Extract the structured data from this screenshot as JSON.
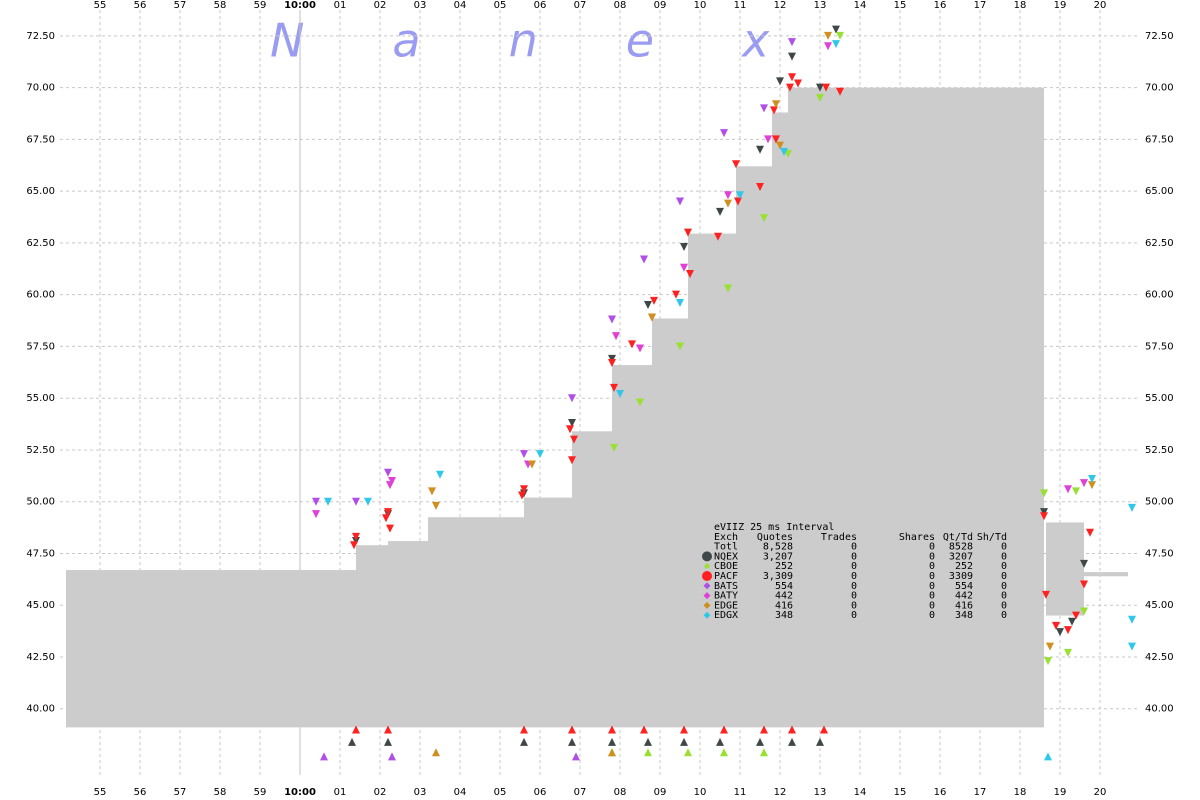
{
  "chart_data": {
    "type": "quote-scatter",
    "watermark": "Nanex",
    "xlim": [
      54,
      81
    ],
    "xticks": [
      55,
      56,
      57,
      58,
      59,
      {
        "value": 60,
        "label": "10:00"
      },
      {
        "value": 61,
        "label": "01"
      },
      {
        "value": 62,
        "label": "02"
      },
      {
        "value": 63,
        "label": "03"
      },
      {
        "value": 64,
        "label": "04"
      },
      {
        "value": 65,
        "label": "05"
      },
      {
        "value": 66,
        "label": "06"
      },
      {
        "value": 67,
        "label": "07"
      },
      {
        "value": 68,
        "label": "08"
      },
      {
        "value": 69,
        "label": "09"
      },
      {
        "value": 70,
        "label": "10"
      },
      {
        "value": 71,
        "label": "11"
      },
      {
        "value": 72,
        "label": "12"
      },
      {
        "value": 73,
        "label": "13"
      },
      {
        "value": 74,
        "label": "14"
      },
      {
        "value": 75,
        "label": "15"
      },
      {
        "value": 76,
        "label": "16"
      },
      {
        "value": 77,
        "label": "17"
      },
      {
        "value": 78,
        "label": "18"
      },
      {
        "value": 79,
        "label": "19"
      },
      {
        "value": 80,
        "label": "20"
      }
    ],
    "ylim": [
      36.8,
      73.75
    ],
    "yticks": [
      {
        "value": 40,
        "label": "40.00"
      },
      {
        "value": 42.5,
        "label": "42.50"
      },
      {
        "value": 45,
        "label": "45.00"
      },
      {
        "value": 47.5,
        "label": "47.50"
      },
      {
        "value": 50,
        "label": "50.00"
      },
      {
        "value": 52.5,
        "label": "52.50"
      },
      {
        "value": 55,
        "label": "55.00"
      },
      {
        "value": 57.5,
        "label": "57.50"
      },
      {
        "value": 60,
        "label": "60.00"
      },
      {
        "value": 62.5,
        "label": "62.50"
      },
      {
        "value": 65,
        "label": "65.00"
      },
      {
        "value": 67.5,
        "label": "67.50"
      },
      {
        "value": 70,
        "label": "70.00"
      },
      {
        "value": 72.5,
        "label": "72.50"
      }
    ],
    "grid": true,
    "range": {
      "color": "#cccccc",
      "x": [
        54.15,
        61.4,
        62.2,
        63.2,
        65.6,
        66.8,
        67.8,
        68.8,
        69.7,
        70.9,
        71.8,
        72.2,
        78.65,
        79.6
      ],
      "x_end": [
        61.4,
        62.2,
        63.2,
        65.6,
        66.8,
        67.8,
        68.8,
        69.7,
        70.9,
        71.8,
        72.2,
        78.6,
        79.6,
        80.7
      ],
      "high": [
        46.7,
        47.9,
        48.1,
        49.25,
        50.2,
        53.4,
        56.6,
        58.85,
        62.95,
        66.2,
        68.8,
        70.0,
        49.0,
        46.6
      ],
      "low": [
        39.1,
        39.1,
        39.1,
        39.1,
        39.1,
        39.1,
        39.1,
        39.1,
        39.1,
        39.1,
        39.1,
        39.1,
        44.5,
        46.4
      ]
    },
    "legend": {
      "title": "eVIIZ 25 ms Interval",
      "columns": [
        "Exch",
        "Quotes",
        "Trades",
        "Shares",
        "Qt/Td",
        "Sh/Td"
      ],
      "total": {
        "name": "Totl",
        "stats": [
          "8,528",
          "0",
          "0",
          "8528",
          "0"
        ]
      }
    },
    "series": [
      {
        "name": "NQEX",
        "color": "#3f4848",
        "marker": "big-circle",
        "stats": [
          "3,207",
          "0",
          "0",
          "3207",
          "0"
        ],
        "x": [
          61.4,
          62.2,
          65.6,
          66.8,
          67.8,
          68.7,
          69.6,
          70.5,
          71.5,
          72.0,
          72.3,
          73.0,
          73.4,
          78.6,
          79.0,
          79.3,
          79.6,
          61.3,
          62.2,
          65.6,
          66.8,
          67.8,
          68.7,
          69.6,
          70.5,
          71.5,
          72.3,
          73.0
        ],
        "y": [
          48.1,
          49.4,
          50.4,
          53.8,
          56.9,
          59.5,
          62.3,
          64.0,
          67.0,
          70.3,
          71.5,
          70.0,
          72.8,
          49.5,
          43.7,
          44.2,
          47.0,
          38.4,
          38.4,
          38.4,
          38.4,
          38.4,
          38.4,
          38.4,
          38.4,
          38.4,
          38.4,
          38.4
        ]
      },
      {
        "name": "CBOE",
        "color": "#99e033",
        "marker": "dot",
        "stats": [
          "252",
          "0",
          "0",
          "252",
          "0"
        ],
        "x": [
          67.85,
          68.5,
          69.5,
          70.7,
          71.6,
          72.2,
          73.0,
          73.5,
          78.6,
          78.7,
          79.2,
          79.4,
          79.6,
          67.8,
          68.7,
          69.7,
          70.6,
          71.6
        ],
        "y": [
          52.6,
          54.8,
          57.5,
          60.3,
          63.7,
          66.8,
          69.5,
          72.5,
          50.4,
          42.3,
          42.7,
          50.5,
          44.7,
          37.9,
          37.9,
          37.9,
          37.9,
          37.9
        ]
      },
      {
        "name": "PACF",
        "color": "#ff2020",
        "marker": "big-circle",
        "stats": [
          "3,309",
          "0",
          "0",
          "3309",
          "0"
        ],
        "x": [
          61.35,
          61.4,
          62.15,
          62.2,
          62.25,
          65.55,
          65.6,
          66.75,
          66.8,
          66.85,
          67.8,
          67.85,
          68.3,
          68.8,
          68.85,
          69.4,
          69.7,
          69.75,
          70.45,
          70.9,
          70.95,
          71.5,
          71.85,
          71.9,
          72.25,
          72.3,
          72.45,
          73.15,
          73.5,
          78.6,
          78.65,
          78.9,
          79.2,
          79.4,
          79.6,
          79.75,
          61.4,
          62.2,
          65.6,
          66.8,
          67.8,
          68.6,
          69.6,
          70.6,
          71.6,
          72.3,
          73.1
        ],
        "y": [
          47.9,
          48.3,
          49.2,
          49.5,
          48.7,
          50.3,
          50.6,
          53.5,
          52.0,
          53.0,
          56.7,
          55.5,
          57.6,
          58.9,
          59.7,
          60.0,
          63.0,
          61.0,
          62.8,
          66.3,
          64.5,
          65.2,
          68.9,
          67.5,
          70.0,
          70.5,
          70.2,
          70.0,
          69.8,
          49.3,
          45.5,
          44.0,
          43.8,
          44.5,
          46.0,
          48.5,
          39.0,
          39.0,
          39.0,
          39.0,
          39.0,
          39.0,
          39.0,
          39.0,
          39.0,
          39.0,
          39.0
        ]
      },
      {
        "name": "BATS",
        "color": "#b04ee8",
        "marker": "diamond",
        "stats": [
          "554",
          "0",
          "0",
          "554",
          "0"
        ],
        "x": [
          60.4,
          61.4,
          62.2,
          65.6,
          66.8,
          67.8,
          68.6,
          69.5,
          70.6,
          71.6,
          72.3,
          60.6,
          62.3,
          66.9
        ],
        "y": [
          50.0,
          50.0,
          51.4,
          52.3,
          55.0,
          58.8,
          61.7,
          64.5,
          67.8,
          69.0,
          72.2,
          37.7,
          37.7,
          37.7
        ]
      },
      {
        "name": "BATY",
        "color": "#e040d8",
        "marker": "diamond",
        "stats": [
          "442",
          "0",
          "0",
          "442",
          "0"
        ],
        "x": [
          60.4,
          62.25,
          62.3,
          65.7,
          67.9,
          68.5,
          69.6,
          70.7,
          71.7,
          73.2,
          79.2,
          79.6
        ],
        "y": [
          49.4,
          50.8,
          51.0,
          51.8,
          58.0,
          57.4,
          61.3,
          64.8,
          67.5,
          72.0,
          50.6,
          50.9
        ]
      },
      {
        "name": "EDGE",
        "color": "#d09020",
        "marker": "diamond",
        "stats": [
          "416",
          "0",
          "0",
          "416",
          "0"
        ],
        "x": [
          63.3,
          63.4,
          65.8,
          68.8,
          70.7,
          71.9,
          72.0,
          73.2,
          79.8,
          78.75,
          63.4,
          67.8
        ],
        "y": [
          50.5,
          49.8,
          51.8,
          58.9,
          64.4,
          69.2,
          67.2,
          72.5,
          50.8,
          43.0,
          37.9,
          37.9
        ]
      },
      {
        "name": "EDGX",
        "color": "#30c8e8",
        "marker": "diamond",
        "stats": [
          "348",
          "0",
          "0",
          "348",
          "0"
        ],
        "x": [
          60.7,
          61.7,
          63.5,
          66.0,
          68.0,
          69.5,
          71.0,
          72.1,
          73.4,
          79.8,
          80.8,
          80.8,
          78.7,
          80.8
        ],
        "y": [
          50.0,
          50.0,
          51.3,
          52.3,
          55.2,
          59.6,
          64.8,
          66.9,
          72.1,
          51.1,
          49.7,
          44.3,
          37.7,
          43.0
        ]
      }
    ]
  }
}
